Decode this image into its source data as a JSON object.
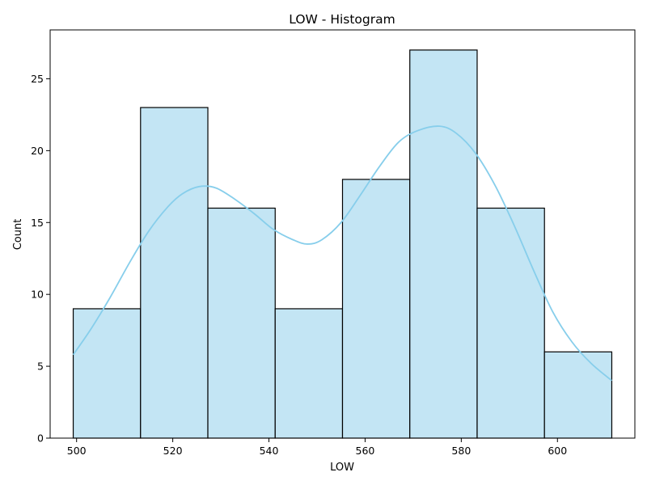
{
  "chart_data": {
    "type": "bar",
    "title": "LOW  - Histogram",
    "xlabel": "LOW",
    "ylabel": "Count",
    "bins": [
      {
        "start": 499.3,
        "end": 513.3,
        "count": 9
      },
      {
        "start": 513.3,
        "end": 527.3,
        "count": 23
      },
      {
        "start": 527.3,
        "end": 541.3,
        "count": 16
      },
      {
        "start": 541.3,
        "end": 555.3,
        "count": 9
      },
      {
        "start": 555.3,
        "end": 569.3,
        "count": 18
      },
      {
        "start": 569.3,
        "end": 583.3,
        "count": 27
      },
      {
        "start": 583.3,
        "end": 597.3,
        "count": 16
      },
      {
        "start": 597.3,
        "end": 611.3,
        "count": 6
      }
    ],
    "kde": {
      "x": [
        499.3,
        503,
        507,
        511,
        515,
        519,
        522,
        525.5,
        529,
        533,
        537,
        541,
        545,
        548,
        551,
        555,
        559,
        563,
        567,
        571,
        575.5,
        579,
        583,
        587,
        591,
        595,
        599,
        603,
        607,
        611.3
      ],
      "y": [
        5.8,
        7.6,
        9.8,
        12.2,
        14.4,
        16.1,
        17.0,
        17.5,
        17.4,
        16.6,
        15.6,
        14.5,
        13.8,
        13.5,
        13.8,
        15.0,
        16.9,
        18.9,
        20.6,
        21.4,
        21.7,
        21.2,
        19.8,
        17.6,
        14.8,
        11.7,
        8.8,
        6.7,
        5.2,
        4.0
      ]
    },
    "xlim": [
      494.5,
      616.1
    ],
    "ylim": [
      0,
      28.4
    ],
    "xticks": [
      500,
      520,
      540,
      560,
      580,
      600
    ],
    "yticks": [
      0,
      5,
      10,
      15,
      20,
      25
    ],
    "grid": false,
    "colors": {
      "bar_fill": "#c3e5f4",
      "bar_edge": "#000000",
      "kde_line": "#87ceeb"
    }
  }
}
